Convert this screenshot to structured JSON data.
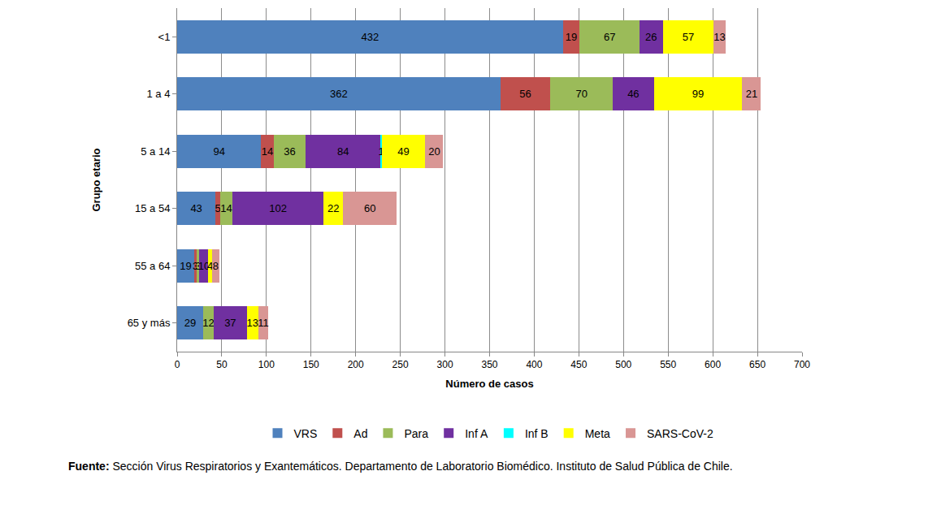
{
  "chart_data": {
    "type": "bar",
    "orientation": "horizontal",
    "stacked": true,
    "data_labels": true,
    "grid": true,
    "legend": "bottom",
    "x_label": "Número de casos",
    "y_label": "Grupo etario",
    "categories": [
      "<1",
      "1 a 4",
      "5 a 14",
      "15 a 54",
      "55 a 64",
      "65 y más"
    ],
    "series": [
      {
        "name": "VRS",
        "color": "#4f81bd",
        "values": [
          432,
          362,
          94,
          43,
          19,
          29
        ]
      },
      {
        "name": "Ad",
        "color": "#c0504d",
        "values": [
          19,
          56,
          14,
          5,
          3,
          0
        ]
      },
      {
        "name": "Para",
        "color": "#9bbb59",
        "values": [
          67,
          70,
          36,
          14,
          3,
          12
        ]
      },
      {
        "name": "Inf A",
        "color": "#7030a0",
        "values": [
          26,
          46,
          84,
          102,
          10,
          37
        ]
      },
      {
        "name": "Inf B",
        "color": "#00ffff",
        "values": [
          null,
          null,
          1,
          0,
          null,
          0
        ]
      },
      {
        "name": "Meta",
        "color": "#ffff00",
        "values": [
          57,
          99,
          49,
          22,
          4,
          13
        ]
      },
      {
        "name": "SARS-CoV-2",
        "color": "#d99694",
        "values": [
          13,
          21,
          20,
          60,
          8,
          11
        ]
      }
    ],
    "xlim": [
      0,
      700
    ],
    "xticks": [
      0,
      50,
      100,
      150,
      200,
      250,
      300,
      350,
      400,
      450,
      500,
      550,
      600,
      650,
      700
    ],
    "source_label": "Fuente:",
    "source_text": "Sección Virus Respiratorios y Exantemáticos. Departamento de Laboratorio Biomédico. Instituto de Salud Pública de Chile."
  }
}
